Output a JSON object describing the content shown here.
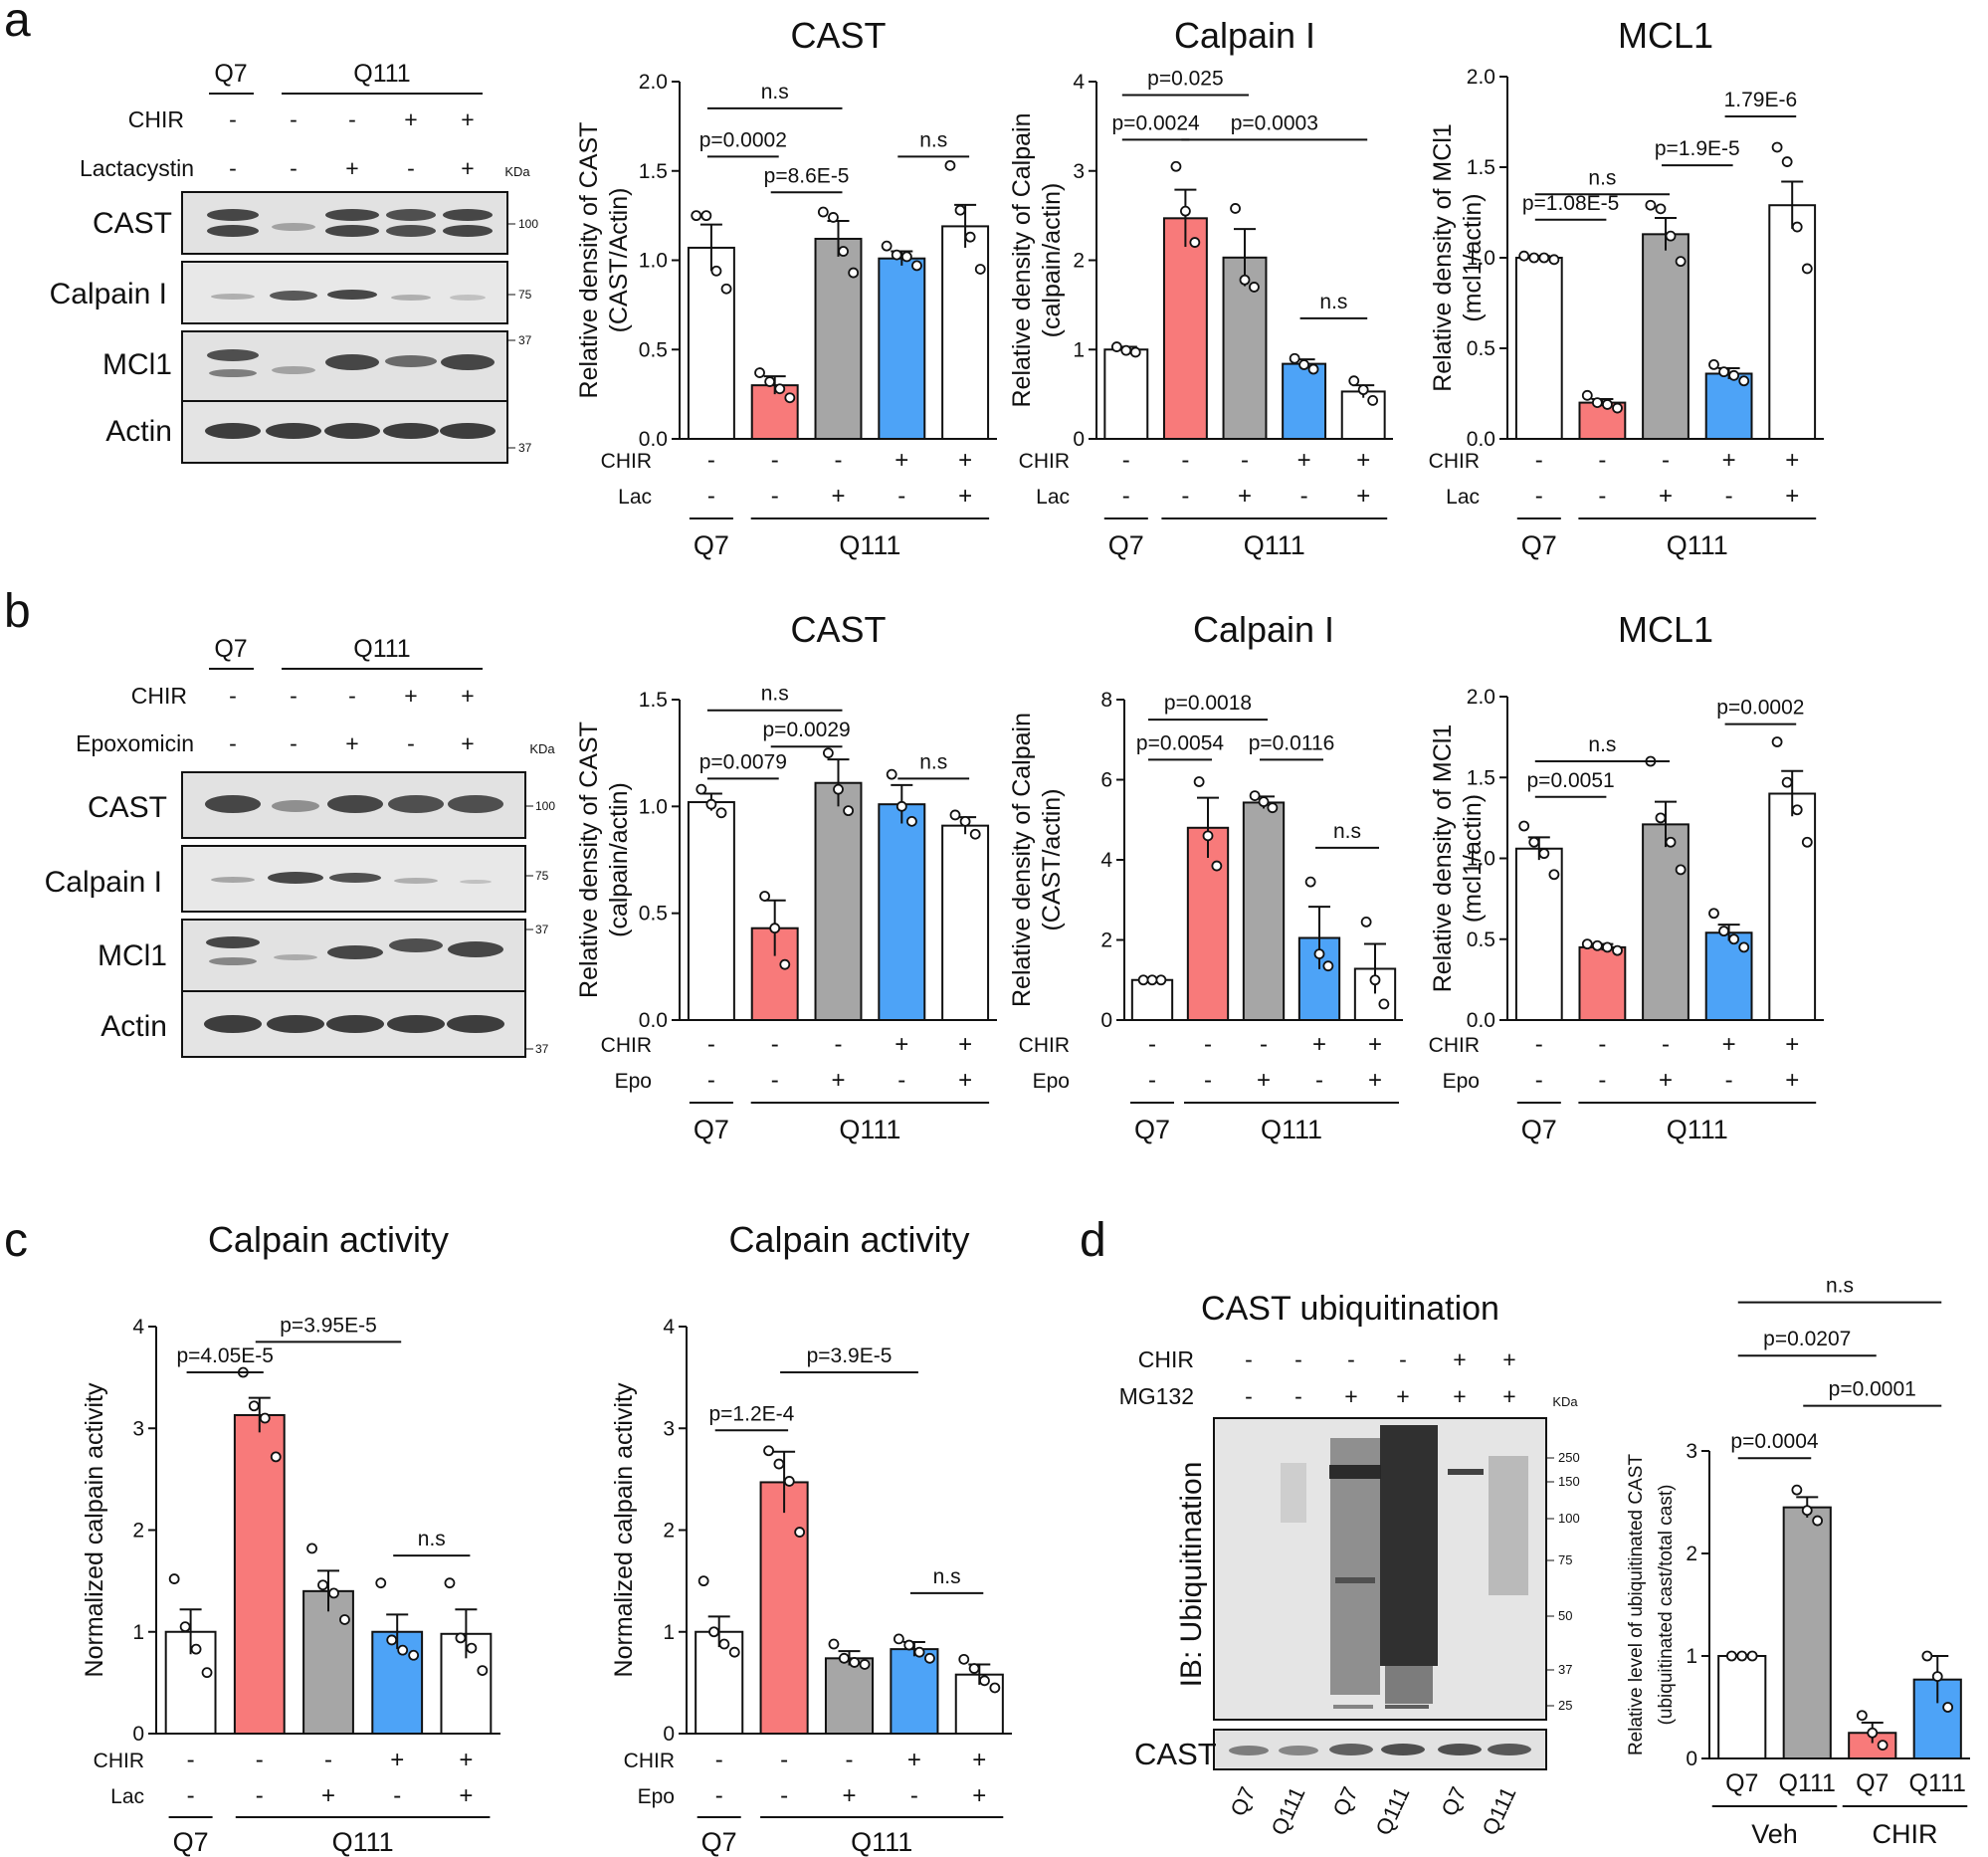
{
  "colors": {
    "white": "#ffffff",
    "red": "#f87a7a",
    "gray": "#a6a6a6",
    "blue": "#4da3f7",
    "stroke": "#111111",
    "blot_bg": "#d8d8d8",
    "band": "#262626"
  },
  "panel_letters": [
    "a",
    "b",
    "c",
    "d"
  ],
  "blots": {
    "a": {
      "groups": [
        "Q7",
        "Q111"
      ],
      "rows": [
        {
          "label": "CHIR",
          "marks": [
            "-",
            "-",
            "-",
            "+",
            "+"
          ]
        },
        {
          "label": "Lactacystin",
          "marks": [
            "-",
            "-",
            "+",
            "-",
            "+"
          ]
        }
      ],
      "kda": "KDa",
      "bands": [
        "CAST",
        "Calpain I",
        "MCl1",
        "Actin"
      ],
      "markers": [
        "100",
        "75",
        "37",
        "37"
      ]
    },
    "b": {
      "groups": [
        "Q7",
        "Q111"
      ],
      "rows": [
        {
          "label": "CHIR",
          "marks": [
            "-",
            "-",
            "-",
            "+",
            "+"
          ]
        },
        {
          "label": "Epoxomicin",
          "marks": [
            "-",
            "-",
            "+",
            "-",
            "+"
          ]
        }
      ],
      "kda": "KDa",
      "bands": [
        "CAST",
        "Calpain I",
        "MCl1",
        "Actin"
      ],
      "markers": [
        "100",
        "75",
        "37",
        "37"
      ]
    },
    "d": {
      "title": "CAST ubiquitination",
      "rows": [
        {
          "label": "CHIR",
          "marks": [
            "-",
            "-",
            "-",
            "-",
            "+",
            "+"
          ]
        },
        {
          "label": "MG132",
          "marks": [
            "-",
            "-",
            "+",
            "+",
            "+",
            "+"
          ]
        }
      ],
      "kda": "KDa",
      "ib_label": "IB: Ubiquitination",
      "cast_label": "CAST",
      "markers": [
        "250",
        "150",
        "100",
        "75",
        "50",
        "37",
        "25"
      ],
      "lanes": [
        "Q7",
        "Q111",
        "Q7",
        "Q111",
        "Q7",
        "Q111"
      ]
    }
  },
  "chart_data": [
    {
      "id": "a1",
      "type": "bar",
      "title": "CAST",
      "ylabel": [
        "Relative density of CAST",
        "(CAST/Actin)"
      ],
      "ylim": [
        0,
        2.0
      ],
      "yticks": [
        "0.0",
        "0.5",
        "1.0",
        "1.5",
        "2.0"
      ],
      "colors": [
        "white",
        "red",
        "gray",
        "blue",
        "white"
      ],
      "values": [
        1.07,
        0.3,
        1.12,
        1.01,
        1.19
      ],
      "errors": [
        0.13,
        0.05,
        0.1,
        0.04,
        0.12
      ],
      "points": [
        [
          1.25,
          1.25,
          0.94,
          0.84
        ],
        [
          0.37,
          0.32,
          0.28,
          0.23
        ],
        [
          1.27,
          1.24,
          1.05,
          0.93
        ],
        [
          1.08,
          1.03,
          1.02,
          0.97
        ],
        [
          1.53,
          1.28,
          1.13,
          0.95
        ]
      ],
      "row1": {
        "label": "CHIR",
        "marks": [
          "-",
          "-",
          "-",
          "+",
          "+"
        ]
      },
      "row2": {
        "label": "Lac",
        "marks": [
          "-",
          "-",
          "+",
          "-",
          "+"
        ]
      },
      "groups": [
        "Q7",
        "Q111"
      ],
      "annotations": [
        {
          "text": "n.s",
          "x1": 0,
          "x2": 2,
          "y": 1.85
        },
        {
          "text": "p=0.0002",
          "x1": 0,
          "x2": 1,
          "y": 1.58
        },
        {
          "text": "p=8.6E-5",
          "x1": 1,
          "x2": 2,
          "y": 1.38
        },
        {
          "text": "n.s",
          "x1": 3,
          "x2": 4,
          "y": 1.58
        }
      ]
    },
    {
      "id": "a2",
      "type": "bar",
      "title": "Calpain I",
      "ylabel": [
        "Relative density of Calpain",
        "(calpain/actin)"
      ],
      "ylim": [
        0,
        4
      ],
      "yticks": [
        "0",
        "1",
        "2",
        "3",
        "4"
      ],
      "colors": [
        "white",
        "red",
        "gray",
        "blue",
        "white"
      ],
      "values": [
        1.0,
        2.47,
        2.03,
        0.84,
        0.53
      ],
      "errors": [
        0.03,
        0.32,
        0.32,
        0.05,
        0.07
      ],
      "points": [
        [
          1.03,
          0.99,
          0.97
        ],
        [
          3.05,
          2.55,
          2.2
        ],
        [
          2.58,
          1.78,
          1.7
        ],
        [
          0.9,
          0.83,
          0.78
        ],
        [
          0.65,
          0.55,
          0.43
        ]
      ],
      "row1": {
        "label": "CHIR",
        "marks": [
          "-",
          "-",
          "-",
          "+",
          "+"
        ]
      },
      "row2": {
        "label": "Lac",
        "marks": [
          "-",
          "-",
          "+",
          "-",
          "+"
        ]
      },
      "groups": [
        "Q7",
        "Q111"
      ],
      "annotations": [
        {
          "text": "p=0.025",
          "x1": 0,
          "x2": 2,
          "y": 3.85
        },
        {
          "text": "p=0.0024",
          "x1": 0,
          "x2": 1,
          "y": 3.35
        },
        {
          "text": "p=0.0003",
          "x1": 1,
          "x2": 4,
          "y": 3.35
        },
        {
          "text": "n.s",
          "x1": 3,
          "x2": 4,
          "y": 1.35
        }
      ]
    },
    {
      "id": "a3",
      "type": "bar",
      "title": "MCL1",
      "ylabel": [
        "Relative density of MCl1",
        "(mcl1/actin)"
      ],
      "ylim": [
        0,
        2.0
      ],
      "yticks": [
        "0.0",
        "0.5",
        "1.0",
        "1.5",
        "2.0"
      ],
      "colors": [
        "white",
        "red",
        "gray",
        "blue",
        "white"
      ],
      "values": [
        1.0,
        0.2,
        1.13,
        0.36,
        1.29
      ],
      "errors": [
        0.01,
        0.02,
        0.09,
        0.03,
        0.13
      ],
      "points": [
        [
          1.01,
          1.0,
          1.0,
          0.99
        ],
        [
          0.24,
          0.2,
          0.19,
          0.17
        ],
        [
          1.29,
          1.27,
          1.12,
          0.98
        ],
        [
          0.41,
          0.37,
          0.35,
          0.32
        ],
        [
          1.61,
          1.53,
          1.17,
          0.94
        ]
      ],
      "row1": {
        "label": "CHIR",
        "marks": [
          "-",
          "-",
          "-",
          "+",
          "+"
        ]
      },
      "row2": {
        "label": "Lac",
        "marks": [
          "-",
          "-",
          "+",
          "-",
          "+"
        ]
      },
      "groups": [
        "Q7",
        "Q111"
      ],
      "annotations": [
        {
          "text": "1.79E-6",
          "x1": 3,
          "x2": 4,
          "y": 1.78
        },
        {
          "text": "p=1.9E-5",
          "x1": 2,
          "x2": 3,
          "y": 1.51
        },
        {
          "text": "n.s",
          "x1": 0,
          "x2": 2,
          "y": 1.35
        },
        {
          "text": "p=1.08E-5",
          "x1": 0,
          "x2": 1,
          "y": 1.21
        }
      ]
    },
    {
      "id": "b1",
      "type": "bar",
      "title": "CAST",
      "ylabel": [
        "Relative density of CAST",
        "(calpain/actin)"
      ],
      "ylim": [
        0,
        1.5
      ],
      "yticks": [
        "0.0",
        "0.5",
        "1.0",
        "1.5"
      ],
      "colors": [
        "white",
        "red",
        "gray",
        "blue",
        "white"
      ],
      "values": [
        1.02,
        0.43,
        1.11,
        1.01,
        0.91
      ],
      "errors": [
        0.04,
        0.13,
        0.11,
        0.09,
        0.04
      ],
      "points": [
        [
          1.08,
          1.01,
          0.97
        ],
        [
          0.58,
          0.43,
          0.26
        ],
        [
          1.25,
          1.08,
          0.98
        ],
        [
          1.15,
          1.0,
          0.93
        ],
        [
          0.96,
          0.93,
          0.87
        ]
      ],
      "row1": {
        "label": "CHIR",
        "marks": [
          "-",
          "-",
          "-",
          "+",
          "+"
        ]
      },
      "row2": {
        "label": "Epo",
        "marks": [
          "-",
          "-",
          "+",
          "-",
          "+"
        ]
      },
      "groups": [
        "Q7",
        "Q111"
      ],
      "annotations": [
        {
          "text": "n.s",
          "x1": 0,
          "x2": 2,
          "y": 1.45
        },
        {
          "text": "p=0.0029",
          "x1": 1,
          "x2": 2,
          "y": 1.28
        },
        {
          "text": "p=0.0079",
          "x1": 0,
          "x2": 1,
          "y": 1.13
        },
        {
          "text": "n.s",
          "x1": 3,
          "x2": 4,
          "y": 1.13
        }
      ]
    },
    {
      "id": "b2",
      "type": "bar",
      "title": "Calpain I",
      "ylabel": [
        "Relative density of Calpain",
        "(CAST/actin)"
      ],
      "ylim": [
        0,
        8
      ],
      "yticks": [
        "0",
        "2",
        "4",
        "6",
        "8"
      ],
      "colors": [
        "white",
        "red",
        "gray",
        "blue",
        "white"
      ],
      "values": [
        1.0,
        4.8,
        5.43,
        2.05,
        1.28
      ],
      "errors": [
        0.02,
        0.75,
        0.15,
        0.78,
        0.62
      ],
      "points": [
        [
          1.0,
          1.0,
          1.0
        ],
        [
          5.95,
          4.6,
          3.85
        ],
        [
          5.6,
          5.45,
          5.3
        ],
        [
          3.45,
          1.65,
          1.35
        ],
        [
          2.45,
          1.0,
          0.4
        ]
      ],
      "row1": {
        "label": "CHIR",
        "marks": [
          "-",
          "-",
          "-",
          "+",
          "+"
        ]
      },
      "row2": {
        "label": "Epo",
        "marks": [
          "-",
          "-",
          "+",
          "-",
          "+"
        ]
      },
      "groups": [
        "Q7",
        "Q111"
      ],
      "annotations": [
        {
          "text": "p=0.0018",
          "x1": 0,
          "x2": 2,
          "y": 7.5
        },
        {
          "text": "p=0.0054",
          "x1": 0,
          "x2": 1,
          "y": 6.5
        },
        {
          "text": "p=0.0116",
          "x1": 2,
          "x2": 3,
          "y": 6.5
        },
        {
          "text": "n.s",
          "x1": 3,
          "x2": 4,
          "y": 4.3
        }
      ]
    },
    {
      "id": "b3",
      "type": "bar",
      "title": "MCL1",
      "ylabel": [
        "Relative density of MCl1",
        "(mcl1/actin)"
      ],
      "ylim": [
        0,
        2.0
      ],
      "yticks": [
        "0.0",
        "0.5",
        "1.0",
        "1.5",
        "2.0"
      ],
      "colors": [
        "white",
        "red",
        "gray",
        "blue",
        "white"
      ],
      "values": [
        1.06,
        0.45,
        1.21,
        0.54,
        1.4
      ],
      "errors": [
        0.07,
        0.02,
        0.14,
        0.05,
        0.14
      ],
      "points": [
        [
          1.2,
          1.1,
          1.03,
          0.9
        ],
        [
          0.47,
          0.46,
          0.45,
          0.43
        ],
        [
          1.6,
          1.25,
          1.1,
          0.93
        ],
        [
          0.66,
          0.55,
          0.5,
          0.45
        ],
        [
          1.72,
          1.47,
          1.3,
          1.1
        ]
      ],
      "row1": {
        "label": "CHIR",
        "marks": [
          "-",
          "-",
          "-",
          "+",
          "+"
        ]
      },
      "row2": {
        "label": "Epo",
        "marks": [
          "-",
          "-",
          "+",
          "-",
          "+"
        ]
      },
      "groups": [
        "Q7",
        "Q111"
      ],
      "annotations": [
        {
          "text": "p=0.0002",
          "x1": 3,
          "x2": 4,
          "y": 1.83
        },
        {
          "text": "n.s",
          "x1": 0,
          "x2": 2,
          "y": 1.6
        },
        {
          "text": "p=0.0051",
          "x1": 0,
          "x2": 1,
          "y": 1.38
        }
      ]
    },
    {
      "id": "c1",
      "type": "bar",
      "title": "Calpain activity",
      "ylabel": [
        "Normalized calpain activity"
      ],
      "ylim": [
        0,
        4
      ],
      "yticks": [
        "0",
        "1",
        "2",
        "3",
        "4"
      ],
      "colors": [
        "white",
        "red",
        "gray",
        "blue",
        "white"
      ],
      "values": [
        1.0,
        3.13,
        1.4,
        1.0,
        0.98
      ],
      "errors": [
        0.22,
        0.17,
        0.2,
        0.17,
        0.24
      ],
      "points": [
        [
          1.52,
          1.05,
          0.83,
          0.6
        ],
        [
          3.55,
          3.22,
          3.1,
          2.72
        ],
        [
          1.82,
          1.46,
          1.38,
          1.12
        ],
        [
          1.48,
          0.92,
          0.82,
          0.77
        ],
        [
          1.48,
          0.94,
          0.84,
          0.62
        ]
      ],
      "row1": {
        "label": "CHIR",
        "marks": [
          "-",
          "-",
          "-",
          "+",
          "+"
        ]
      },
      "row2": {
        "label": "Lac",
        "marks": [
          "-",
          "-",
          "+",
          "-",
          "+"
        ]
      },
      "groups": [
        "Q7",
        "Q111"
      ],
      "annotations": [
        {
          "text": "p=3.95E-5",
          "x1": 1,
          "x2": 3,
          "y": 3.85
        },
        {
          "text": "p=4.05E-5",
          "x1": 0,
          "x2": 1,
          "y": 3.55
        },
        {
          "text": "n.s",
          "x1": 3,
          "x2": 4,
          "y": 1.75
        }
      ]
    },
    {
      "id": "c2",
      "type": "bar",
      "title": "Calpain activity",
      "ylabel": [
        "Normalized calpain activity"
      ],
      "ylim": [
        0,
        4
      ],
      "yticks": [
        "0",
        "1",
        "2",
        "3",
        "4"
      ],
      "colors": [
        "white",
        "red",
        "gray",
        "blue",
        "white"
      ],
      "values": [
        1.0,
        2.47,
        0.74,
        0.83,
        0.58
      ],
      "errors": [
        0.15,
        0.3,
        0.07,
        0.07,
        0.1
      ],
      "points": [
        [
          1.5,
          1.0,
          0.88,
          0.8
        ],
        [
          2.78,
          2.65,
          2.48,
          1.98
        ],
        [
          0.88,
          0.74,
          0.7,
          0.68
        ],
        [
          0.93,
          0.87,
          0.8,
          0.74
        ],
        [
          0.73,
          0.64,
          0.52,
          0.45
        ]
      ],
      "row1": {
        "label": "CHIR",
        "marks": [
          "-",
          "-",
          "-",
          "+",
          "+"
        ]
      },
      "row2": {
        "label": "Epo",
        "marks": [
          "-",
          "-",
          "+",
          "-",
          "+"
        ]
      },
      "groups": [
        "Q7",
        "Q111"
      ],
      "annotations": [
        {
          "text": "p=3.9E-5",
          "x1": 1,
          "x2": 3,
          "y": 3.55
        },
        {
          "text": "p=1.2E-4",
          "x1": 0,
          "x2": 1,
          "y": 2.98
        },
        {
          "text": "n.s",
          "x1": 3,
          "x2": 4,
          "y": 1.38
        }
      ]
    },
    {
      "id": "d1",
      "type": "bar",
      "title": "",
      "ylabel": [
        "Relative level of ubiquitinated CAST",
        "(ubiquitinated cast/total cast)"
      ],
      "ylim": [
        0,
        3
      ],
      "yticks": [
        "0",
        "1",
        "2",
        "3"
      ],
      "colors": [
        "white",
        "gray",
        "red",
        "blue"
      ],
      "values": [
        1.0,
        2.45,
        0.25,
        0.77
      ],
      "errors": [
        0.01,
        0.1,
        0.1,
        0.23
      ],
      "points": [
        [
          1.0,
          1.0,
          1.0
        ],
        [
          2.62,
          2.42,
          2.32
        ],
        [
          0.42,
          0.25,
          0.13
        ],
        [
          1.0,
          0.8,
          0.5
        ]
      ],
      "lanes": [
        "Q7",
        "Q111",
        "Q7",
        "Q111"
      ],
      "groups": [
        "Veh",
        "CHIR"
      ],
      "annotations": [
        {
          "text": "n.s",
          "x1": 0,
          "x2": 3,
          "y": 4.45
        },
        {
          "text": "p=0.0207",
          "x1": 0,
          "x2": 2,
          "y": 3.93
        },
        {
          "text": "p=0.0001",
          "x1": 1,
          "x2": 3,
          "y": 3.44
        },
        {
          "text": "p=0.0004",
          "x1": 0,
          "x2": 1,
          "y": 2.93
        }
      ]
    }
  ]
}
